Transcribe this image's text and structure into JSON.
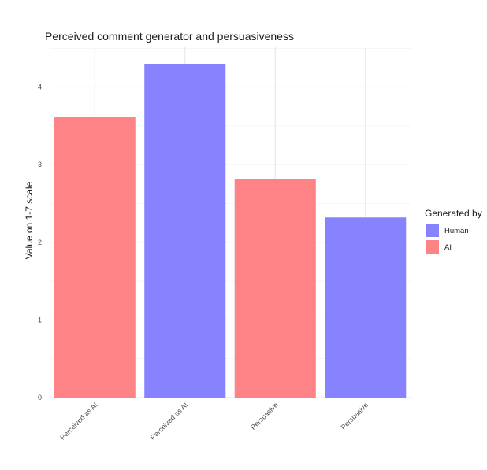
{
  "chart_data": {
    "type": "bar",
    "title": "Perceived comment generator and persuasiveness",
    "xlabel": "",
    "ylabel": "Value on 1-7 scale",
    "ylim": [
      0,
      4.5
    ],
    "yticks": [
      "0",
      "1",
      "2",
      "3",
      "4"
    ],
    "categories": [
      "Perceived as AI",
      "Perceived as AI",
      "Persuasive",
      "Persuasive"
    ],
    "bars": [
      {
        "category": "Perceived as AI",
        "group": "AI",
        "value": 3.62
      },
      {
        "category": "Perceived as AI",
        "group": "Human",
        "value": 4.3
      },
      {
        "category": "Persuasive",
        "group": "AI",
        "value": 2.81
      },
      {
        "category": "Persuasive",
        "group": "Human",
        "value": 2.32
      }
    ],
    "legend": {
      "title": "Generated by",
      "position": "right",
      "items": [
        {
          "label": "Human",
          "color": "#8783ff"
        },
        {
          "label": "AI",
          "color": "#fd8387"
        }
      ]
    },
    "grid": true
  }
}
